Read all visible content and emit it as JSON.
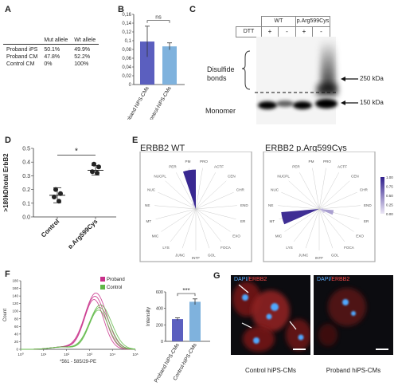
{
  "panels": {
    "A": "A",
    "B": "B",
    "C": "C",
    "D": "D",
    "E": "E",
    "F": "F",
    "G": "G"
  },
  "panel_a": {
    "headers": [
      "",
      "Mut allele",
      "Wt allele"
    ],
    "rows": [
      [
        "Proband iPS",
        "50.1%",
        "49.9%"
      ],
      [
        "Proband CM",
        "47.8%",
        "52.2%"
      ],
      [
        "Control CM",
        "0%",
        "100%"
      ]
    ]
  },
  "chart_data": [
    {
      "id": "B",
      "type": "bar",
      "categories": [
        "Proband hiPS-CMs",
        "Control-hiPS-CMs"
      ],
      "values": [
        0.098,
        0.087
      ],
      "errors": [
        0.035,
        0.008
      ],
      "ylim": [
        0,
        0.16
      ],
      "yticks": [
        "0",
        "0,02",
        "0,04",
        "0,06",
        "0,08",
        "0,1",
        "0,12",
        "0,14",
        "0,16"
      ],
      "significance": "ns",
      "colors": [
        "#5b5fbf",
        "#7fb2dd"
      ]
    },
    {
      "id": "D",
      "type": "scatter",
      "ylabel": ">180kD/total ErbB2",
      "categories": [
        "Control",
        "p.Arg599Cys"
      ],
      "points": [
        [
          0.2,
          0.17,
          0.145,
          0.115
        ],
        [
          0.385,
          0.365,
          0.33,
          0.32
        ]
      ],
      "means": [
        0.158,
        0.34
      ],
      "sd": [
        0.055,
        0.035
      ],
      "ylim": [
        0,
        0.5
      ],
      "yticks": [
        "0.0",
        "0.1",
        "0.2",
        "0.3",
        "0.4",
        "0.5"
      ],
      "significance": "*"
    },
    {
      "id": "E",
      "type": "radial",
      "spokes": [
        "PRO",
        "ACTF",
        "CEN",
        "CHR",
        "END",
        "ER",
        "EXO",
        "FOCA",
        "GOL",
        "INTF",
        "JUNC",
        "LYS",
        "MIC",
        "MT",
        "NE",
        "NUC",
        "NUCPL",
        "PER",
        "PM"
      ],
      "panels": [
        {
          "title": "ERBB2 WT",
          "values": {
            "PM": 0.95,
            "PER": 0.15
          }
        },
        {
          "title": "ERBB2 p.Arg599Cys",
          "values": {
            "MT": 0.92,
            "ER": 0.35,
            "EXO": 0.15,
            "END": 0.1,
            "PM": 0.08
          }
        }
      ],
      "colorbar": [
        "1.00",
        "0.75",
        "0.50",
        "0.25",
        "0.00"
      ]
    },
    {
      "id": "F-hist",
      "type": "line",
      "xlabel": "*561 - 585/29-PE",
      "ylabel": "Count",
      "yticks": [
        "0",
        "20",
        "40",
        "60",
        "80",
        "100",
        "120",
        "140",
        "160",
        "180"
      ],
      "xticks": [
        "10⁰",
        "10¹",
        "10²",
        "10³",
        "10⁴",
        "10⁵"
      ],
      "series": [
        {
          "name": "Proband",
          "color": "#c8308a",
          "peak_log": 3.2,
          "peak": 142
        },
        {
          "name": "Control",
          "color": "#5fb847",
          "peak_log": 3.4,
          "peak": 112
        }
      ]
    },
    {
      "id": "F-bar",
      "type": "bar",
      "ylabel": "Intensity",
      "categories": [
        "Proband hiPS-CMs",
        "Control-hiPS-CMs"
      ],
      "values": [
        270,
        480
      ],
      "errors": [
        15,
        35
      ],
      "ylim": [
        0,
        600
      ],
      "yticks": [
        "0",
        "200",
        "400",
        "600"
      ],
      "significance": "***",
      "colors": [
        "#5b5fbf",
        "#7fb2dd"
      ]
    }
  ],
  "panel_c": {
    "groups": [
      "WT",
      "p.Arg599Cys"
    ],
    "dtt_label": "DTT",
    "dtt": [
      "+",
      "-",
      "+",
      "-"
    ],
    "bracket_label": "Disulfide bonds",
    "monomer_label": "Monomer",
    "markers": [
      "250 kDa",
      "150 kDa"
    ]
  },
  "panel_g": {
    "stain_labels": [
      {
        "dapi": "DAPI/",
        "erbb2": "ERBB2"
      },
      {
        "dapi": "DAPI/",
        "erbb2": "ERBB2"
      }
    ],
    "captions": [
      "Control hiPS-CMs",
      "Proband hiPS-CMs"
    ]
  }
}
